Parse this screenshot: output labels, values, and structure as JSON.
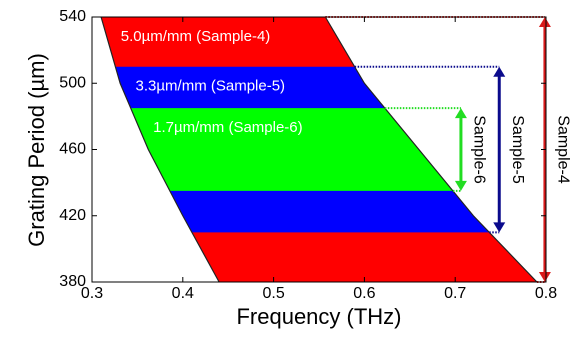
{
  "chart_data": {
    "type": "band",
    "x_label": "Frequency (THz)",
    "y_label": "Grating Period (µm)",
    "xlim": [
      0.3,
      0.8
    ],
    "ylim": [
      380,
      540
    ],
    "xticks": [
      0.3,
      0.4,
      0.5,
      0.6,
      0.7,
      0.8
    ],
    "yticks": [
      380,
      420,
      460,
      500,
      540
    ],
    "left_boundary": {
      "y": [
        380,
        420,
        460,
        500,
        540
      ],
      "x": [
        0.44,
        0.4,
        0.362,
        0.331,
        0.31
      ]
    },
    "right_boundary": {
      "y": [
        380,
        420,
        460,
        500,
        540
      ],
      "x": [
        0.79,
        0.72,
        0.66,
        0.6,
        0.557
      ]
    },
    "series": [
      {
        "name": "5.0µm/mm (Sample-4)",
        "arrow_label": "Sample-4",
        "color": "#ff0000",
        "arrow_color": "#d81a1a",
        "range": [
          380,
          540
        ]
      },
      {
        "name": "3.3µm/mm (Sample-5)",
        "arrow_label": "Sample-5",
        "color": "#0000ff",
        "arrow_color": "#0a0a8c",
        "range": [
          410,
          510
        ]
      },
      {
        "name": "1.7µm/mm (Sample-6)",
        "arrow_label": "Sample-6",
        "color": "#00ff00",
        "arrow_color": "#22dd22",
        "range": [
          435,
          485
        ]
      }
    ]
  }
}
